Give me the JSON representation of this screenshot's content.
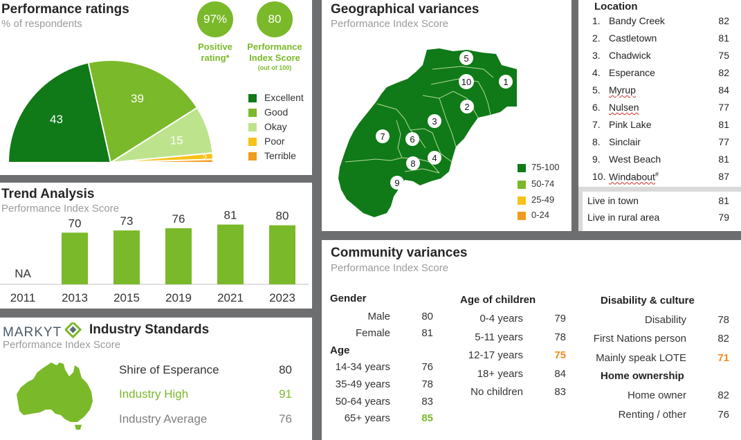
{
  "performance": {
    "title": "Performance ratings",
    "subtitle": "% of respondents",
    "positive_value": "97%",
    "positive_label_1": "Positive",
    "positive_label_2": "rating*",
    "index_value": "80",
    "index_label_1": "Performance",
    "index_label_2": "Index Score",
    "index_label_3": "(out of 100)",
    "legend": [
      "Excellent",
      "Good",
      "Okay",
      "Poor",
      "Terrible"
    ],
    "colors": [
      "#0f7a17",
      "#7ab929",
      "#bde38c",
      "#f9c21a",
      "#f19b1c"
    ]
  },
  "trend": {
    "title": "Trend Analysis",
    "subtitle": "Performance Index Score",
    "na_label": "NA"
  },
  "industry": {
    "brand": "MARKYT",
    "title": "Industry Standards",
    "subtitle": "Performance Index Score",
    "rows": [
      {
        "label": "Shire of Esperance",
        "value": "80"
      },
      {
        "label": "Industry High",
        "value": "91"
      },
      {
        "label": "Industry Average",
        "value": "76"
      }
    ]
  },
  "geo": {
    "title": "Geographical variances",
    "subtitle": "Performance Index Score",
    "legend": [
      "75-100",
      "50-74",
      "25-49",
      "0-24"
    ],
    "legend_colors": [
      "#0f7a17",
      "#7ab929",
      "#f9c21a",
      "#f19b1c"
    ],
    "markers": [
      "1",
      "2",
      "3",
      "4",
      "5",
      "6",
      "7",
      "8",
      "9",
      "10"
    ]
  },
  "location": {
    "heading": "Location",
    "items": [
      {
        "num": "1.",
        "name": "Bandy Creek",
        "value": "82"
      },
      {
        "num": "2.",
        "name": "Castletown",
        "value": "81"
      },
      {
        "num": "3.",
        "name": "Chadwick",
        "value": "75"
      },
      {
        "num": "4.",
        "name": "Esperance",
        "value": "82"
      },
      {
        "num": "5.",
        "name": "Myrup",
        "value": "84"
      },
      {
        "num": "6.",
        "name": "Nulsen",
        "value": "77"
      },
      {
        "num": "7.",
        "name": "Pink Lake",
        "value": "81"
      },
      {
        "num": "8.",
        "name": "Sinclair",
        "value": "77"
      },
      {
        "num": "9.",
        "name": "West Beach",
        "value": "81"
      },
      {
        "num": "10.",
        "name": "Windabout",
        "value": "87",
        "mark": "#"
      }
    ],
    "extra": [
      {
        "name": "Live in town",
        "value": "81"
      },
      {
        "name": "Live in rural area",
        "value": "79"
      }
    ]
  },
  "community": {
    "title": "Community variances",
    "subtitle": "Performance Index Score",
    "gender_head": "Gender",
    "gender": [
      {
        "label": "Male",
        "value": "80"
      },
      {
        "label": "Female",
        "value": "81"
      }
    ],
    "age_head": "Age",
    "age": [
      {
        "label": "14-34 years",
        "value": "76"
      },
      {
        "label": "35-49 years",
        "value": "78"
      },
      {
        "label": "50-64 years",
        "value": "83"
      },
      {
        "label": "65+ years",
        "value": "85"
      }
    ],
    "children_head": "Age of children",
    "children": [
      {
        "label": "0-4 years",
        "value": "79"
      },
      {
        "label": "5-11 years",
        "value": "78"
      },
      {
        "label": "12-17 years",
        "value": "75"
      },
      {
        "label": "18+ years",
        "value": "84"
      },
      {
        "label": "No children",
        "value": "83"
      }
    ],
    "disability_head": "Disability & culture",
    "disability": [
      {
        "label": "Disability",
        "value": "78"
      },
      {
        "label": "First Nations person",
        "value": "82"
      },
      {
        "label": "Mainly speak LOTE",
        "value": "71"
      }
    ],
    "home_head": "Home ownership",
    "home": [
      {
        "label": "Home owner",
        "value": "82"
      },
      {
        "label": "Renting / other",
        "value": "76"
      }
    ],
    "highlight_green": "#7ab929",
    "highlight_orange": "#f08a1c"
  },
  "chart_data": [
    {
      "type": "pie",
      "title": "Performance ratings",
      "subtitle": "% of respondents",
      "categories": [
        "Excellent",
        "Good",
        "Okay",
        "Poor",
        "Terrible"
      ],
      "values": [
        43,
        39,
        15,
        2,
        1
      ],
      "labels": [
        "43",
        "39",
        "15",
        "2",
        ""
      ]
    },
    {
      "type": "bar",
      "title": "Trend Analysis",
      "subtitle": "Performance Index Score",
      "categories": [
        "2011",
        "2013",
        "2015",
        "2019",
        "2021",
        "2023"
      ],
      "values": [
        null,
        70,
        73,
        76,
        81,
        80
      ],
      "ylim": [
        0,
        100
      ]
    }
  ]
}
